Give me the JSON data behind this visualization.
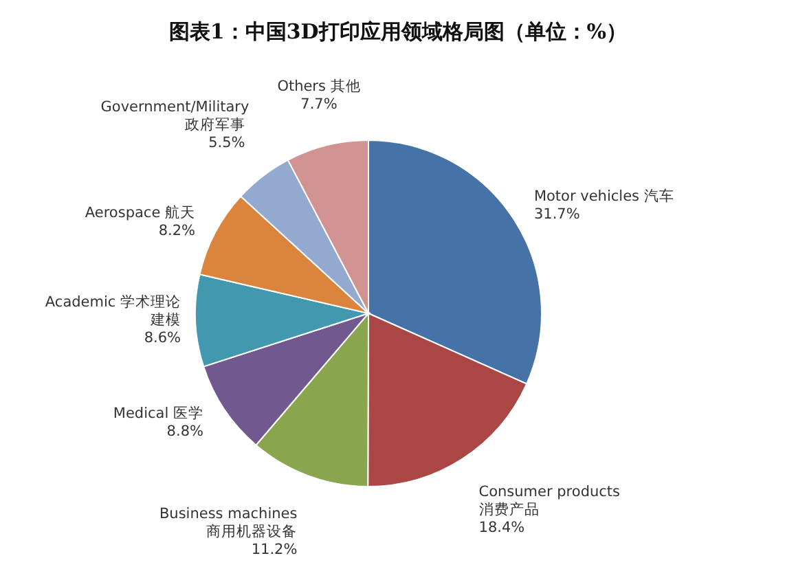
{
  "chart_data": {
    "type": "pie",
    "title": "图表1：中国3D打印应用领域格局图（单位：%）",
    "categories": [
      "Motor vehicles 汽车",
      "Consumer products 消费产品",
      "Business machines 商用机器设备",
      "Medical 医学",
      "Academic 学术理论建模",
      "Aerospace 航天",
      "Government/Military 政府军事",
      "Others 其他"
    ],
    "values": [
      31.7,
      18.4,
      11.2,
      8.8,
      8.6,
      8.2,
      5.5,
      7.7
    ],
    "value_labels": [
      "31.7%",
      "18.4%",
      "11.2%",
      "8.8%",
      "8.6%",
      "8.2%",
      "5.5%",
      "7.7%"
    ],
    "colors": [
      "#4572a7",
      "#aa4643",
      "#89a54e",
      "#71588f",
      "#4198af",
      "#db843d",
      "#93a9cf",
      "#d19392"
    ]
  }
}
